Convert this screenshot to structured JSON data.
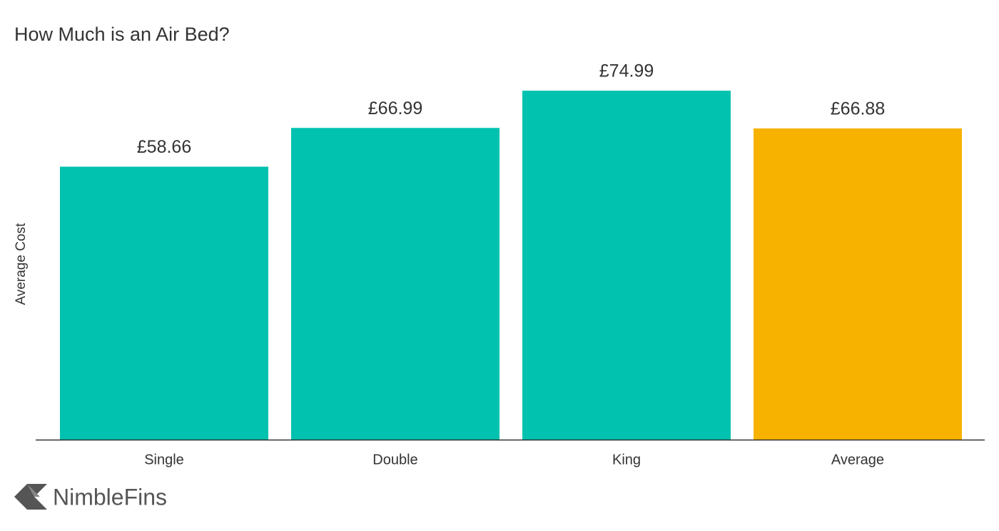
{
  "chart_data": {
    "type": "bar",
    "title": "How Much is an Air Bed?",
    "y_label": "Average Cost",
    "categories": [
      "Single",
      "Double",
      "King",
      "Average"
    ],
    "values": [
      58.66,
      66.99,
      74.99,
      66.88
    ],
    "value_labels": [
      "£58.66",
      "£66.99",
      "£74.99",
      "£66.88"
    ],
    "colors": [
      "#00c2ae",
      "#00c2ae",
      "#00c2ae",
      "#f7b200"
    ],
    "ylim": [
      0,
      80
    ]
  },
  "logo": "NimbleFins"
}
